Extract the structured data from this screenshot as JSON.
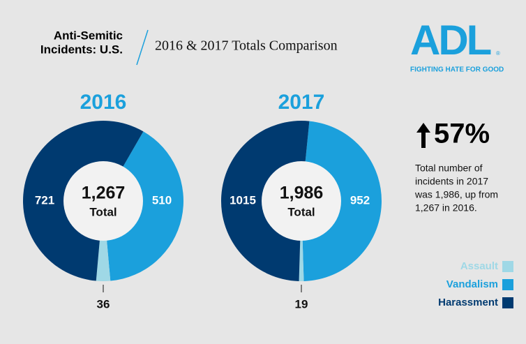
{
  "header": {
    "title_lines": [
      "Anti-Semitic",
      "Incidents: U.S."
    ],
    "subtitle": "2016 & 2017 Totals Comparison"
  },
  "logo": {
    "name": "ADL",
    "mark": "®",
    "tagline": "FIGHTING HATE FOR GOOD"
  },
  "change": {
    "value": 57,
    "label": "57%"
  },
  "description_lines": [
    "Total number of",
    "incidents in 2017",
    "was 1,986, up from",
    "1,267 in 2016."
  ],
  "chart_data": [
    {
      "type": "donut",
      "title": "2016",
      "categories": [
        "Assault",
        "Vandalism",
        "Harassment"
      ],
      "values": [
        36,
        510,
        721
      ],
      "colors": [
        "#9fd8e6",
        "#1ba0dc",
        "#003a70"
      ],
      "total": {
        "value": 1267,
        "label": "1,267"
      },
      "total_caption": "Total"
    },
    {
      "type": "donut",
      "title": "2017",
      "categories": [
        "Assault",
        "Vandalism",
        "Harassment"
      ],
      "values": [
        19,
        952,
        1015
      ],
      "colors": [
        "#9fd8e6",
        "#1ba0dc",
        "#003a70"
      ],
      "total": {
        "value": 1986,
        "label": "1,986"
      },
      "total_caption": "Total"
    }
  ]
}
